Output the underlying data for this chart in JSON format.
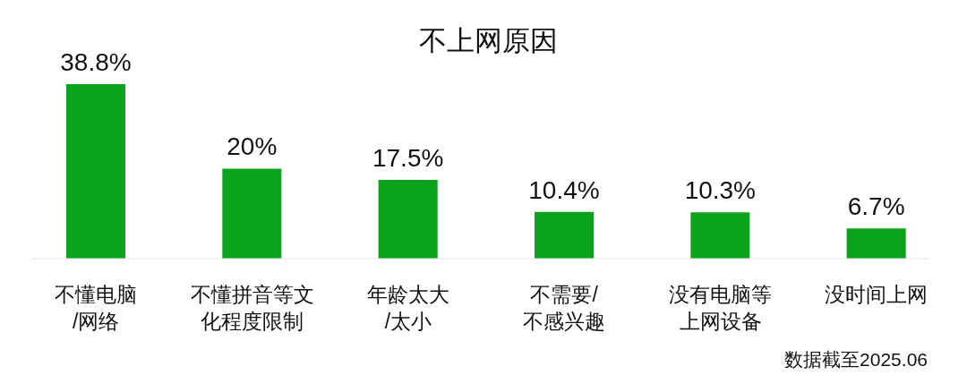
{
  "chart_data": {
    "type": "bar",
    "title": "不上网原因",
    "categories": [
      "不懂电脑/网络",
      "不懂拼音等文化程度限制",
      "年龄太大/太小",
      "不需要/不感兴趣",
      "没有电脑等上网设备",
      "没时间上网"
    ],
    "values": [
      38.8,
      20,
      17.5,
      10.4,
      10.3,
      6.7
    ],
    "color": "#0aa31b",
    "value_labels": [
      "38.8%",
      "20%",
      "17.5%",
      "10.4%",
      "10.3%",
      "6.7%"
    ],
    "annotations": [
      "数据截至2025.06"
    ]
  }
}
